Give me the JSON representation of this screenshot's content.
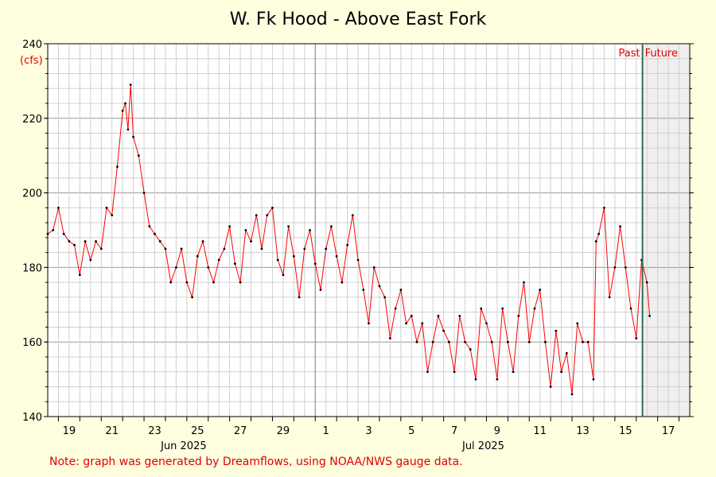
{
  "chart_data": {
    "type": "line",
    "title": "W. Fk Hood - Above East Fork",
    "ylabel": "(cfs)",
    "ylim": [
      140,
      240
    ],
    "xlim": [
      "2025-06-18T12:00",
      "2025-07-18T12:00"
    ],
    "yticks": [
      140,
      160,
      180,
      200,
      220,
      240
    ],
    "xticks": [
      {
        "t": "2025-06-19",
        "label": "19"
      },
      {
        "t": "2025-06-21",
        "label": "21"
      },
      {
        "t": "2025-06-23",
        "label": "23"
      },
      {
        "t": "2025-06-25",
        "label": "25"
      },
      {
        "t": "2025-06-27",
        "label": "27"
      },
      {
        "t": "2025-06-29",
        "label": "29"
      },
      {
        "t": "2025-07-01",
        "label": "1"
      },
      {
        "t": "2025-07-03",
        "label": "3"
      },
      {
        "t": "2025-07-05",
        "label": "5"
      },
      {
        "t": "2025-07-07",
        "label": "7"
      },
      {
        "t": "2025-07-09",
        "label": "9"
      },
      {
        "t": "2025-07-11",
        "label": "11"
      },
      {
        "t": "2025-07-13",
        "label": "13"
      },
      {
        "t": "2025-07-15",
        "label": "15"
      },
      {
        "t": "2025-07-17",
        "label": "17"
      }
    ],
    "month_labels": [
      {
        "t": "2025-06-25",
        "label": "Jun 2025"
      },
      {
        "t": "2025-07-09",
        "label": "Jul 2025"
      }
    ],
    "now": "2025-07-16T07:00",
    "past_label": "Past",
    "future_label": "Future",
    "grid": true,
    "series": [
      {
        "color": "#ff0000",
        "points": [
          [
            "2025-06-18T12:00",
            189
          ],
          [
            "2025-06-18T18:00",
            190
          ],
          [
            "2025-06-19T00:00",
            196
          ],
          [
            "2025-06-19T06:00",
            189
          ],
          [
            "2025-06-19T12:00",
            187
          ],
          [
            "2025-06-19T18:00",
            186
          ],
          [
            "2025-06-20T00:00",
            178
          ],
          [
            "2025-06-20T06:00",
            187
          ],
          [
            "2025-06-20T12:00",
            182
          ],
          [
            "2025-06-20T18:00",
            187
          ],
          [
            "2025-06-21T00:00",
            185
          ],
          [
            "2025-06-21T06:00",
            196
          ],
          [
            "2025-06-21T12:00",
            194
          ],
          [
            "2025-06-21T18:00",
            207
          ],
          [
            "2025-06-22T00:00",
            222
          ],
          [
            "2025-06-22T03:00",
            224
          ],
          [
            "2025-06-22T06:00",
            217
          ],
          [
            "2025-06-22T09:00",
            229
          ],
          [
            "2025-06-22T12:00",
            215
          ],
          [
            "2025-06-22T18:00",
            210
          ],
          [
            "2025-06-23T00:00",
            200
          ],
          [
            "2025-06-23T06:00",
            191
          ],
          [
            "2025-06-23T12:00",
            189
          ],
          [
            "2025-06-23T18:00",
            187
          ],
          [
            "2025-06-24T00:00",
            185
          ],
          [
            "2025-06-24T06:00",
            176
          ],
          [
            "2025-06-24T12:00",
            180
          ],
          [
            "2025-06-24T18:00",
            185
          ],
          [
            "2025-06-25T00:00",
            176
          ],
          [
            "2025-06-25T06:00",
            172
          ],
          [
            "2025-06-25T12:00",
            183
          ],
          [
            "2025-06-25T18:00",
            187
          ],
          [
            "2025-06-26T00:00",
            180
          ],
          [
            "2025-06-26T06:00",
            176
          ],
          [
            "2025-06-26T12:00",
            182
          ],
          [
            "2025-06-26T18:00",
            185
          ],
          [
            "2025-06-27T00:00",
            191
          ],
          [
            "2025-06-27T06:00",
            181
          ],
          [
            "2025-06-27T12:00",
            176
          ],
          [
            "2025-06-27T18:00",
            190
          ],
          [
            "2025-06-28T00:00",
            187
          ],
          [
            "2025-06-28T06:00",
            194
          ],
          [
            "2025-06-28T12:00",
            185
          ],
          [
            "2025-06-28T18:00",
            194
          ],
          [
            "2025-06-29T00:00",
            196
          ],
          [
            "2025-06-29T06:00",
            182
          ],
          [
            "2025-06-29T12:00",
            178
          ],
          [
            "2025-06-29T18:00",
            191
          ],
          [
            "2025-06-30T00:00",
            183
          ],
          [
            "2025-06-30T06:00",
            172
          ],
          [
            "2025-06-30T12:00",
            185
          ],
          [
            "2025-06-30T18:00",
            190
          ],
          [
            "2025-07-01T00:00",
            181
          ],
          [
            "2025-07-01T06:00",
            174
          ],
          [
            "2025-07-01T12:00",
            185
          ],
          [
            "2025-07-01T18:00",
            191
          ],
          [
            "2025-07-02T00:00",
            183
          ],
          [
            "2025-07-02T06:00",
            176
          ],
          [
            "2025-07-02T12:00",
            186
          ],
          [
            "2025-07-02T18:00",
            194
          ],
          [
            "2025-07-03T00:00",
            182
          ],
          [
            "2025-07-03T06:00",
            174
          ],
          [
            "2025-07-03T12:00",
            165
          ],
          [
            "2025-07-03T18:00",
            180
          ],
          [
            "2025-07-04T00:00",
            175
          ],
          [
            "2025-07-04T06:00",
            172
          ],
          [
            "2025-07-04T12:00",
            161
          ],
          [
            "2025-07-04T18:00",
            169
          ],
          [
            "2025-07-05T00:00",
            174
          ],
          [
            "2025-07-05T06:00",
            165
          ],
          [
            "2025-07-05T12:00",
            167
          ],
          [
            "2025-07-05T18:00",
            160
          ],
          [
            "2025-07-06T00:00",
            165
          ],
          [
            "2025-07-06T06:00",
            152
          ],
          [
            "2025-07-06T12:00",
            160
          ],
          [
            "2025-07-06T18:00",
            167
          ],
          [
            "2025-07-07T00:00",
            163
          ],
          [
            "2025-07-07T06:00",
            160
          ],
          [
            "2025-07-07T12:00",
            152
          ],
          [
            "2025-07-07T18:00",
            167
          ],
          [
            "2025-07-08T00:00",
            160
          ],
          [
            "2025-07-08T06:00",
            158
          ],
          [
            "2025-07-08T12:00",
            150
          ],
          [
            "2025-07-08T18:00",
            169
          ],
          [
            "2025-07-09T00:00",
            165
          ],
          [
            "2025-07-09T06:00",
            160
          ],
          [
            "2025-07-09T12:00",
            150
          ],
          [
            "2025-07-09T18:00",
            169
          ],
          [
            "2025-07-10T00:00",
            160
          ],
          [
            "2025-07-10T06:00",
            152
          ],
          [
            "2025-07-10T12:00",
            167
          ],
          [
            "2025-07-10T18:00",
            176
          ],
          [
            "2025-07-11T00:00",
            160
          ],
          [
            "2025-07-11T06:00",
            169
          ],
          [
            "2025-07-11T12:00",
            174
          ],
          [
            "2025-07-11T18:00",
            160
          ],
          [
            "2025-07-12T00:00",
            148
          ],
          [
            "2025-07-12T06:00",
            163
          ],
          [
            "2025-07-12T12:00",
            152
          ],
          [
            "2025-07-12T18:00",
            157
          ],
          [
            "2025-07-13T00:00",
            146
          ],
          [
            "2025-07-13T06:00",
            165
          ],
          [
            "2025-07-13T12:00",
            160
          ],
          [
            "2025-07-13T18:00",
            160
          ],
          [
            "2025-07-14T00:00",
            150
          ],
          [
            "2025-07-14T03:00",
            187
          ],
          [
            "2025-07-14T06:00",
            189
          ],
          [
            "2025-07-14T12:00",
            196
          ],
          [
            "2025-07-14T18:00",
            172
          ],
          [
            "2025-07-15T00:00",
            180
          ],
          [
            "2025-07-15T06:00",
            191
          ],
          [
            "2025-07-15T12:00",
            180
          ],
          [
            "2025-07-15T18:00",
            169
          ],
          [
            "2025-07-16T00:00",
            161
          ],
          [
            "2025-07-16T06:00",
            182
          ],
          [
            "2025-07-16T12:00",
            176
          ],
          [
            "2025-07-16T15:00",
            167
          ]
        ]
      }
    ]
  },
  "note": "Note: graph was generated by Dreamflows, using NOAA/NWS gauge data.",
  "colors": {
    "background": "#ffffe0",
    "line": "#ff0000",
    "now_line": "#2e6b55",
    "future": "#efefef"
  }
}
